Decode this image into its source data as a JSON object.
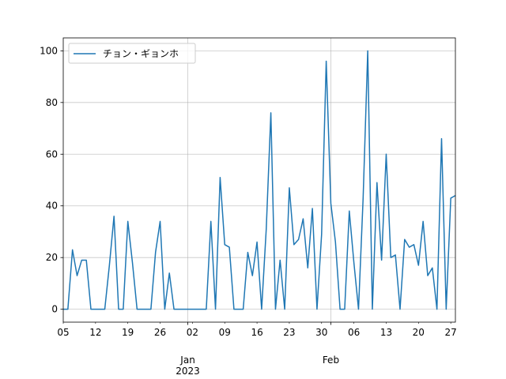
{
  "chart_data": {
    "type": "line",
    "x": [
      "2022-12-05",
      "2022-12-06",
      "2022-12-07",
      "2022-12-08",
      "2022-12-09",
      "2022-12-10",
      "2022-12-11",
      "2022-12-12",
      "2022-12-13",
      "2022-12-14",
      "2022-12-15",
      "2022-12-16",
      "2022-12-17",
      "2022-12-18",
      "2022-12-19",
      "2022-12-20",
      "2022-12-21",
      "2022-12-22",
      "2022-12-23",
      "2022-12-24",
      "2022-12-25",
      "2022-12-26",
      "2022-12-27",
      "2022-12-28",
      "2022-12-29",
      "2022-12-30",
      "2022-12-31",
      "2023-01-01",
      "2023-01-02",
      "2023-01-03",
      "2023-01-04",
      "2023-01-05",
      "2023-01-06",
      "2023-01-07",
      "2023-01-08",
      "2023-01-09",
      "2023-01-10",
      "2023-01-11",
      "2023-01-12",
      "2023-01-13",
      "2023-01-14",
      "2023-01-15",
      "2023-01-16",
      "2023-01-17",
      "2023-01-18",
      "2023-01-19",
      "2023-01-20",
      "2023-01-21",
      "2023-01-22",
      "2023-01-23",
      "2023-01-24",
      "2023-01-25",
      "2023-01-26",
      "2023-01-27",
      "2023-01-28",
      "2023-01-29",
      "2023-01-30",
      "2023-01-31",
      "2023-02-01",
      "2023-02-02",
      "2023-02-03",
      "2023-02-04",
      "2023-02-05",
      "2023-02-06",
      "2023-02-07",
      "2023-02-08",
      "2023-02-09",
      "2023-02-10",
      "2023-02-11",
      "2023-02-12",
      "2023-02-13",
      "2023-02-14",
      "2023-02-15",
      "2023-02-16",
      "2023-02-17",
      "2023-02-18",
      "2023-02-19",
      "2023-02-20",
      "2023-02-21",
      "2023-02-22",
      "2023-02-23",
      "2023-02-24",
      "2023-02-25",
      "2023-02-26",
      "2023-02-27",
      "2023-02-28"
    ],
    "series": [
      {
        "name": "チョン・ギョンホ",
        "color": "#1f77b4",
        "values": [
          0,
          0,
          23,
          13,
          19,
          19,
          0,
          0,
          0,
          0,
          17,
          36,
          0,
          0,
          34,
          18,
          0,
          0,
          0,
          0,
          22,
          34,
          0,
          14,
          0,
          0,
          0,
          0,
          0,
          0,
          0,
          0,
          34,
          0,
          51,
          25,
          24,
          0,
          0,
          0,
          22,
          13,
          26,
          0,
          31,
          76,
          0,
          19,
          0,
          47,
          25,
          27,
          35,
          16,
          39,
          0,
          29,
          96,
          41,
          26,
          0,
          0,
          38,
          18,
          0,
          43,
          100,
          0,
          49,
          19,
          60,
          20,
          21,
          0,
          27,
          24,
          25,
          17,
          34,
          13,
          16,
          0,
          66,
          0,
          43,
          44
        ]
      }
    ],
    "ylim": [
      -5,
      105
    ],
    "yticks": [
      "0",
      "20",
      "40",
      "60",
      "80",
      "100"
    ],
    "xticks_minor": [
      "05",
      "12",
      "19",
      "26",
      "02",
      "09",
      "16",
      "23",
      "30",
      "06",
      "13",
      "20",
      "27"
    ],
    "xticks_major": [
      "Jan\n2023",
      "Feb"
    ],
    "major_dates": [
      "2023-01-01",
      "2023-02-01"
    ],
    "xlabel": "",
    "ylabel": "",
    "title": "",
    "grid": true,
    "legend_placement": "upper-left"
  }
}
